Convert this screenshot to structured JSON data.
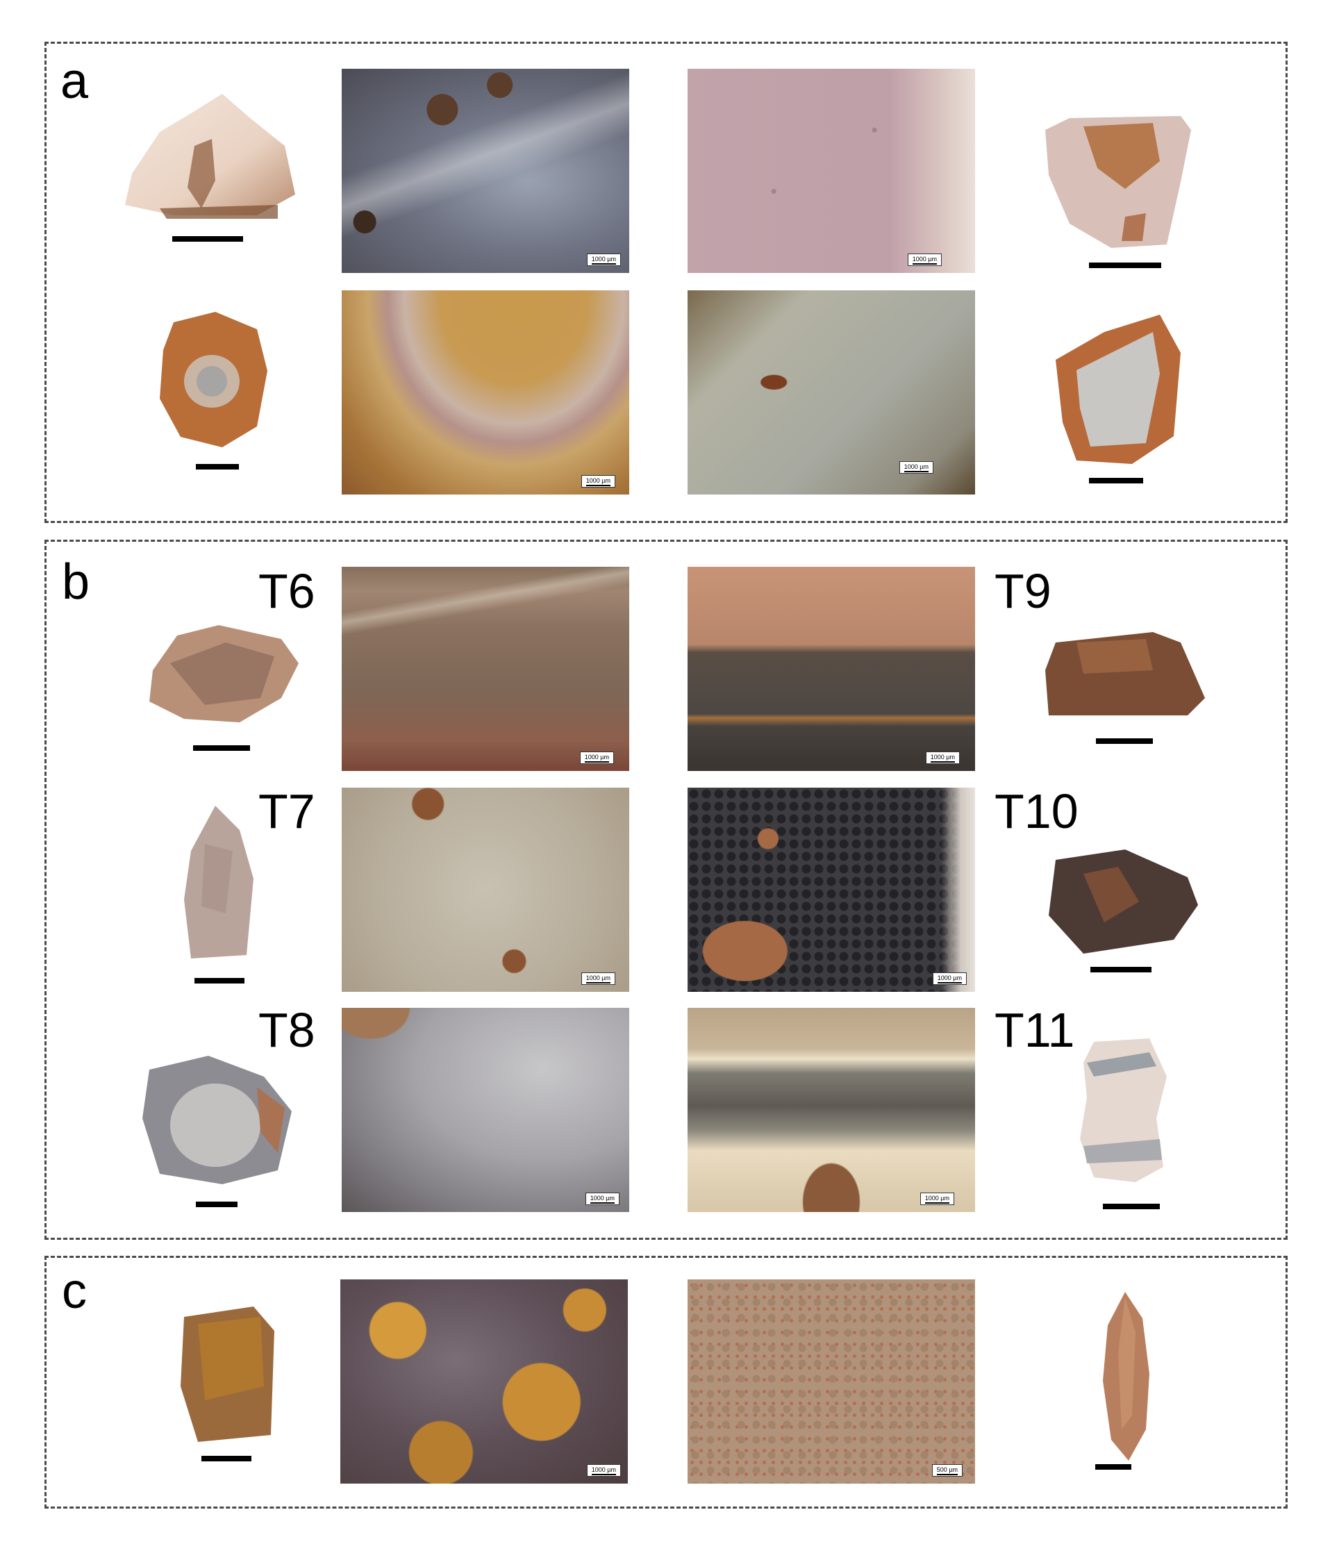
{
  "panels": {
    "a": {
      "letter": "a"
    },
    "b": {
      "letter": "b"
    },
    "c": {
      "letter": "c"
    }
  },
  "type_labels": {
    "t6": "T6",
    "t7": "T7",
    "t8": "T8",
    "t9": "T9",
    "t10": "T10",
    "t11": "T11"
  },
  "micro_scales": {
    "a1": "1000 µm",
    "a2": "1000 µm",
    "a3": "1000 µm",
    "a4": "1000 µm",
    "b1": "1000 µm",
    "b2": "1000 µm",
    "b3": "1000 µm",
    "b4": "1000 µm",
    "b5": "1000 µm",
    "b6": "1000 µm",
    "c1": "1000 µm",
    "c2": "500 µm"
  },
  "colors": {
    "panel_border": "#4a4a4a",
    "scale_bar": "#000000"
  }
}
